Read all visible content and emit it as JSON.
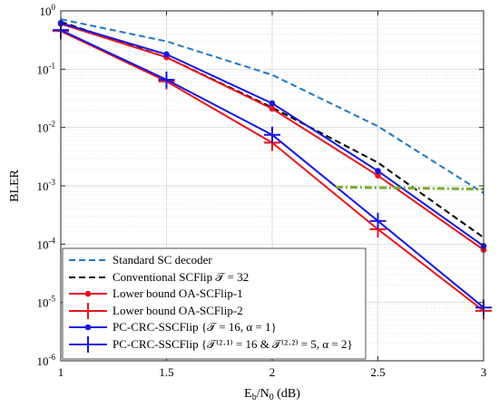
{
  "chart_data": {
    "type": "line",
    "title": "",
    "xlabel": "E_b/N_0 (dB)",
    "xlabel_parts": {
      "main": "E",
      "sub1": "b",
      "mid": "/N",
      "sub2": "0",
      "unit": " (dB)"
    },
    "ylabel": "BLER",
    "xlim": [
      1,
      3
    ],
    "ylim_log10": [
      -6,
      0
    ],
    "yscale": "log",
    "grid": true,
    "x_ticks": [
      "1",
      "1.5",
      "2",
      "2.5",
      "3"
    ],
    "y_ticks": [
      {
        "base": "10",
        "exp": "0"
      },
      {
        "base": "10",
        "exp": "-1"
      },
      {
        "base": "10",
        "exp": "-2"
      },
      {
        "base": "10",
        "exp": "-3"
      },
      {
        "base": "10",
        "exp": "-4"
      },
      {
        "base": "10",
        "exp": "-5"
      },
      {
        "base": "10",
        "exp": "-6"
      }
    ],
    "legend_position": "bottom-left",
    "series": [
      {
        "name": "Standard SC decoder",
        "color": "#1f77c4",
        "style": "dashed",
        "marker": "none",
        "x": [
          1,
          1.5,
          2,
          2.5,
          3
        ],
        "y": [
          0.72,
          0.3,
          0.08,
          0.0105,
          0.00075
        ]
      },
      {
        "name": "Conventional SCFlip T = 32",
        "color": "#000000",
        "style": "dashed",
        "marker": "none",
        "x": [
          1,
          1.5,
          2,
          2.5,
          3
        ],
        "y": [
          0.65,
          0.16,
          0.022,
          0.0025,
          0.00013
        ]
      },
      {
        "name": "Lower bound OA-SCFlip-1",
        "color": "#e8141b",
        "style": "solid",
        "marker": "dot",
        "x": [
          1,
          1.5,
          2,
          2.5,
          3
        ],
        "y": [
          0.6,
          0.16,
          0.021,
          0.0015,
          8e-05
        ]
      },
      {
        "name": "Lower bound OA-SCFlip-2",
        "color": "#e8141b",
        "style": "solid",
        "marker": "plus",
        "x": [
          1,
          1.5,
          2,
          2.5,
          3
        ],
        "y": [
          0.45,
          0.062,
          0.0055,
          0.00018,
          7.2e-06
        ]
      },
      {
        "name": "PC-CRC-SSCFlip {T = 16, α = 1}",
        "color": "#1717e0",
        "style": "solid",
        "marker": "dot",
        "x": [
          1,
          1.5,
          2,
          2.5,
          3
        ],
        "y": [
          0.62,
          0.18,
          0.026,
          0.0018,
          9.3e-05
        ]
      },
      {
        "name": "PC-CRC-SSCFlip {T^(2,1) = 16 & T^(2,2) = 5, α = 2}",
        "color": "#1717e0",
        "style": "solid",
        "marker": "plus",
        "x": [
          1,
          1.5,
          2,
          2.5,
          3
        ],
        "y": [
          0.47,
          0.066,
          0.0075,
          0.00025,
          8.2e-06
        ]
      }
    ],
    "annotation_line": {
      "color": "#77ac30",
      "style": "dash-dot",
      "x": [
        2.3,
        3.0
      ],
      "y": [
        0.00095,
        0.00088
      ]
    },
    "legend_texts": [
      "Standard SC decoder",
      "Conventional SCFlip 𝒯 = 32",
      "Lower bound OA-SCFlip-1",
      "Lower bound OA-SCFlip-2",
      "PC-CRC-SSCFlip {𝒯 = 16, α = 1}",
      "PC-CRC-SSCFlip {𝒯⁽²·¹⁾ = 16   &   𝒯⁽²·²⁾ = 5, α = 2}"
    ]
  }
}
